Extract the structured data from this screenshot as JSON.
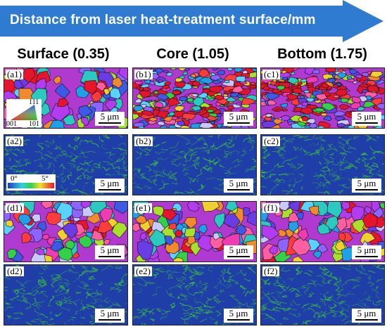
{
  "banner": {
    "title": "Distance from laser heat-treatment surface/mm",
    "color": "#2e7bd1"
  },
  "columns": [
    {
      "heading": "Surface (0.35)"
    },
    {
      "heading": "Core (1.05)"
    },
    {
      "heading": "Bottom (1.75)"
    }
  ],
  "panels": [
    {
      "label": "(a1)",
      "type": "ipf",
      "scale": "5 μm"
    },
    {
      "label": "(b1)",
      "type": "ipf-banded",
      "scale": "5 μm"
    },
    {
      "label": "(c1)",
      "type": "ipf-banded",
      "scale": "5 μm"
    },
    {
      "label": "(a2)",
      "type": "kam",
      "scale": "5 μm"
    },
    {
      "label": "(b2)",
      "type": "kam",
      "scale": "5 μm"
    },
    {
      "label": "(c2)",
      "type": "kam",
      "scale": "5 μm"
    },
    {
      "label": "(d1)",
      "type": "ipf",
      "scale": "5 μm"
    },
    {
      "label": "(e1)",
      "type": "ipf",
      "scale": "5 μm"
    },
    {
      "label": "(f1)",
      "type": "ipf",
      "scale": "5 μm"
    },
    {
      "label": "(d2)",
      "type": "kam",
      "scale": "5 μm"
    },
    {
      "label": "(e2)",
      "type": "kam",
      "scale": "5 μm"
    },
    {
      "label": "(f2)",
      "type": "kam",
      "scale": "5 μm"
    }
  ],
  "ipf_legend": {
    "top": "111",
    "left": "001",
    "right": "101"
  },
  "kam_legend": {
    "min": "0°",
    "max": "5°"
  },
  "colors": {
    "kam_background": "#1f3ea8",
    "kam_highlight": "#39c43a"
  }
}
